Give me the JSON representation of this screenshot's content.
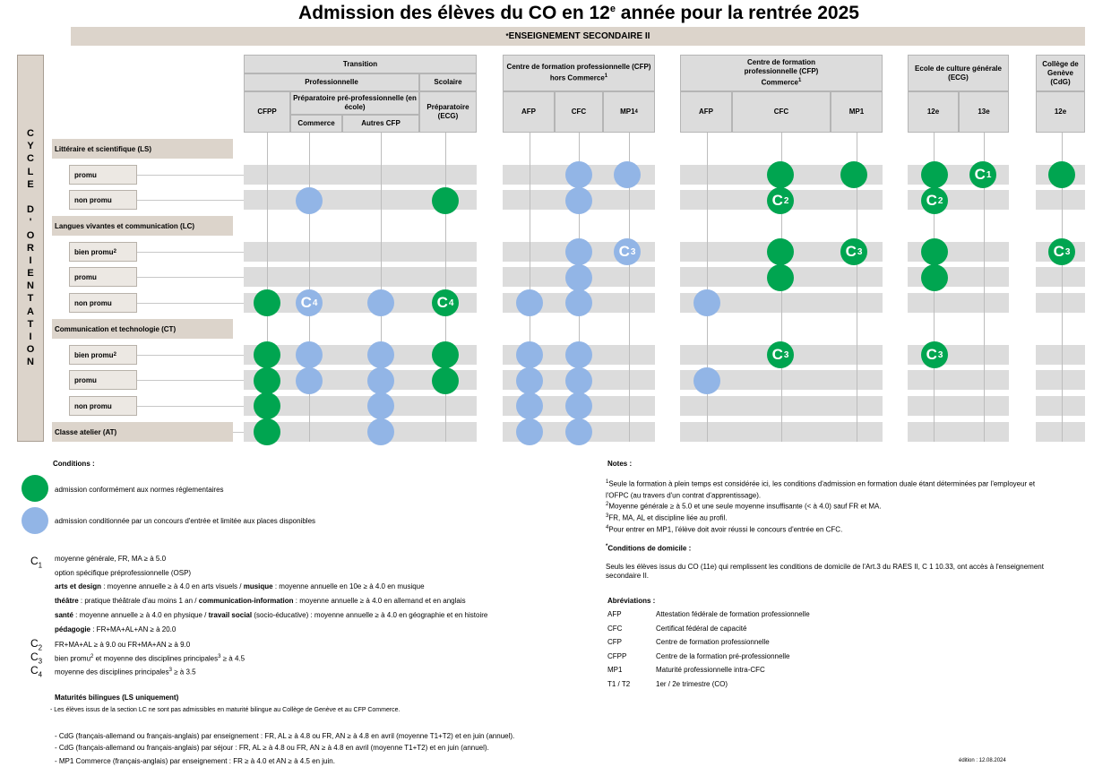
{
  "title": "Admission des élèves du CO en 12",
  "title_sup": "e",
  "title_tail": " année pour la rentrée 2025",
  "banner": "ENSEIGNEMENT SECONDAIRE II",
  "banner_mark": "*",
  "cycle_letters": [
    "C",
    "Y",
    "C",
    "L",
    "E",
    "",
    "D",
    "'",
    "O",
    "R",
    "I",
    "E",
    "N",
    "T",
    "A",
    "T",
    "I",
    "O",
    "N"
  ],
  "headers": {
    "transition": "Transition",
    "professionnelle": "Professionnelle",
    "scolaire": "Scolaire",
    "preparatoire": "Préparatoire pré-professionnelle (en école)",
    "commerce": "Commerce",
    "autres_cfp": "Autres CFP",
    "cfpp": "CFPP",
    "prep_ecg": "Préparatoire (ECG)",
    "cfp_hors": "Centre de formation professionnelle (CFP)",
    "cfp_hors2": "hors Commerce",
    "cfp_hors_sup": "1",
    "afp": "AFP",
    "cfc": "CFC",
    "mp1": "MP1",
    "mp1_sup": "4",
    "cfp_com": "Centre de formation professionnelle (CFP)",
    "cfp_com2": "Commerce",
    "cfp_com_sup": "1",
    "ecg": "Ecole de culture générale (ECG)",
    "y12": "12e",
    "y13": "13e",
    "cdg": "Collège de Genève (CdG)"
  },
  "sections": {
    "ls": "Littéraire et scientifique (LS)",
    "lc": "Langues vivantes et communication (LC)",
    "ct": "Communication et technologie (CT)",
    "at": "Classe atelier (AT)"
  },
  "rows": {
    "ls_promu": "promu",
    "ls_non_promu": "non promu",
    "lc_bien_promu": "bien promu",
    "lc_promu": "promu",
    "lc_non_promu": "non promu",
    "ct_bien_promu": "bien promu",
    "ct_promu": "promu",
    "ct_non_promu": "non promu",
    "sup2": "2"
  },
  "marks": {
    "c1": "C",
    "c1_sub": "1",
    "c2": "C",
    "c2_sub": "2",
    "c3": "C",
    "c3_sub": "3",
    "c4": "C",
    "c4_sub": "4"
  },
  "colors": {
    "green": "#00a550",
    "blue": "#92b5e6",
    "band": "#dcdcdc",
    "beige": "#dcd4cb"
  },
  "conditions": {
    "heading": "Conditions :",
    "green_text": "admission conformément aux normes réglementaires",
    "blue_text": "admission conditionnée par un concours d'entrée et limitée aux places disponibles",
    "c1_lines": [
      "moyenne générale, FR, MA ≥ à 5.0",
      "option spécifique préprofessionnelle (OSP)"
    ],
    "osp": [
      {
        "b1": "arts et design",
        "t1": " : moyenne annuelle ≥ à 4.0 en arts visuels / ",
        "b2": "musique",
        "t2": " : moyenne annuelle en 10e ≥ à 4.0 en musique"
      },
      {
        "b1": "théâtre",
        "t1": " : pratique théâtrale d'au moins 1 an / ",
        "b2": "communication-information",
        "t2": " : moyenne annuelle ≥ à 4.0 en allemand et en anglais"
      },
      {
        "b1": "santé",
        "t1": " : moyenne annuelle ≥ à 4.0 en physique / ",
        "b2": "travail social",
        "t2": " (socio-éducative) : moyenne annuelle ≥ à 4.0 en géographie et en histoire"
      },
      {
        "b1": "pédagogie",
        "t1": " : FR+MA+AL+AN ≥ à 20.0",
        "b2": "",
        "t2": ""
      }
    ],
    "c2_line": "FR+MA+AL ≥ à 9.0 ou FR+MA+AN ≥ à 9.0",
    "c3_line_a": "bien promu",
    "c3_line_b": " et moyenne des disciplines principales",
    "c3_line_c": " ≥ à 4.5",
    "c4_line_a": "moyenne des disciplines principales",
    "c4_line_c": " ≥ à 3.5",
    "sup2": "2",
    "sup3": "3"
  },
  "bilingue": {
    "heading": "Maturités bilingues (LS uniquement)",
    "note": "- Les élèves issus de la section LC ne sont pas admissibles en maturité bilingue au Collège de Genève et au CFP Commerce.",
    "lines": [
      "- CdG (français-allemand ou français-anglais) par enseignement : FR, AL ≥ à 4.8 ou FR, AN ≥ à 4.8 en avril (moyenne T1+T2) et en juin (annuel).",
      "- CdG (français-allemand ou français-anglais) par séjour : FR, AL ≥ à 4.8 ou FR, AN ≥ à 4.8 en avril (moyenne T1+T2) et en juin (annuel).",
      "- MP1 Commerce (français-anglais) par enseignement : FR ≥ à 4.0 et AN ≥ à 4.5 en juin."
    ]
  },
  "notes": {
    "heading": "Notes :",
    "items": [
      {
        "sup": "1",
        "text": "Seule la formation à plein temps est considérée ici, les conditions d'admission en formation duale étant déterminées par l'employeur et"
      },
      {
        "sup": "",
        "text": "l'OFPC (au travers d'un contrat d'apprentissage)."
      },
      {
        "sup": "2",
        "text": "Moyenne générale ≥ à 5.0 et une seule moyenne insuffisante (< à 4.0) sauf FR et MA."
      },
      {
        "sup": "3",
        "text": "FR, MA, AL et discipline liée au profil."
      },
      {
        "sup": "4",
        "text": "Pour entrer en MP1, l'élève doit avoir réussi le concours d'entrée en CFC."
      }
    ],
    "domicile_mark": "*",
    "domicile_heading": "Conditions de domicile :",
    "domicile_text_1": "Seuls les élèves issus du CO (11e)  qui remplissent les conditions de domicile de l'Art.3 du RAES II, C 1 10.33, ont accès à l'enseignement",
    "domicile_text_2": "secondaire II."
  },
  "abbreviations": {
    "heading": "Abréviations :",
    "items": [
      {
        "k": "AFP",
        "v": "Attestation fédérale de formation professionnelle"
      },
      {
        "k": "CFC",
        "v": "Certificat fédéral de capacité"
      },
      {
        "k": "CFP",
        "v": "Centre de formation professionnelle"
      },
      {
        "k": "CFPP",
        "v": "Centre de la formation pré-professionnelle"
      },
      {
        "k": "MP1",
        "v": "Maturité professionnelle intra-CFC"
      },
      {
        "k": "T1 / T2",
        "v": "1er / 2e trimestre (CO)"
      }
    ]
  },
  "edition": "édition : 12.08.2024"
}
